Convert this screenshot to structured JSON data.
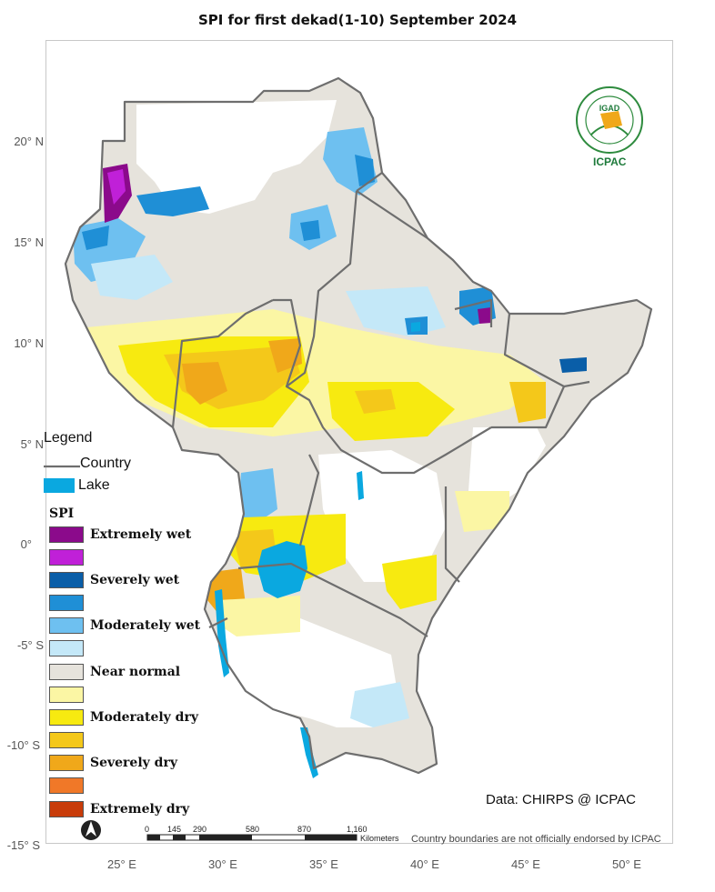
{
  "title": "SPI  for first dekad(1-10) September 2024",
  "lat_labels": [
    "20° N",
    "15° N",
    "10° N",
    "5° N",
    "0°",
    "-5° S",
    "-10° S",
    "-15° S"
  ],
  "lon_labels": [
    "25° E",
    "30° E",
    "35° E",
    "40° E",
    "45° E",
    "50° E"
  ],
  "legend": {
    "title": "Legend",
    "country_label": "Country",
    "lake_label": "Lake",
    "spi_title": "SPI",
    "classes": [
      {
        "label": "Extremely wet",
        "color": "#8b0a8b"
      },
      {
        "label": "",
        "color": "#c020d8"
      },
      {
        "label": "Severely wet",
        "color": "#0a5ea8"
      },
      {
        "label": "",
        "color": "#1f8fd6"
      },
      {
        "label": "Moderately wet",
        "color": "#6ec0f0"
      },
      {
        "label": "",
        "color": "#c4e8f8"
      },
      {
        "label": "Near normal",
        "color": "#e6e3dc"
      },
      {
        "label": "",
        "color": "#fbf6a4"
      },
      {
        "label": "Moderately dry",
        "color": "#f7ea10"
      },
      {
        "label": "",
        "color": "#f4c81a"
      },
      {
        "label": "Severely dry",
        "color": "#f0a81a"
      },
      {
        "label": "",
        "color": "#f07828"
      },
      {
        "label": "Extremely dry",
        "color": "#c83c0a"
      }
    ]
  },
  "colors": {
    "country_border": "#6e6e6e",
    "lake": "#0aa8e0",
    "frame": "#c8c8c8"
  },
  "logo": {
    "text": "ICPAC",
    "inner_text": "IGAD",
    "icon": "igad-icpac-logo-icon"
  },
  "source": "Data: CHIRPS @ ICPAC",
  "disclaimer": "Country boundaries are not officially endorsed by ICPAC",
  "scale_bar": {
    "ticks": [
      "0",
      "145",
      "290",
      "580",
      "870",
      "1,160"
    ],
    "unit": "Kilometers"
  },
  "north_arrow": "north-arrow-icon"
}
